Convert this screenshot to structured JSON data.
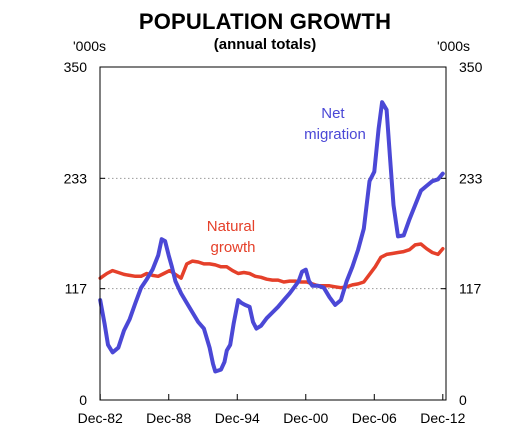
{
  "header": {
    "title": "POPULATION GROWTH",
    "subtitle": "(annual totals)",
    "unit_left": "'000s",
    "unit_right": "'000s"
  },
  "chart_data": {
    "type": "line",
    "title": "POPULATION GROWTH",
    "subtitle": "(annual totals)",
    "ylabel_left": "'000s",
    "ylabel_right": "'000s",
    "ylim": [
      0,
      350
    ],
    "yticks": [
      0,
      117,
      233,
      350
    ],
    "ytick_labels": [
      "0",
      "117",
      "233",
      "350"
    ],
    "xlim": [
      1982.9,
      2013.2
    ],
    "xticks": [
      1982.92,
      1988.92,
      1994.92,
      2000.92,
      2006.92,
      2012.92
    ],
    "xtick_labels": [
      "Dec-82",
      "Dec-88",
      "Dec-94",
      "Dec-00",
      "Dec-06",
      "Dec-12"
    ],
    "grid": "horizontal dotted at 117 and 233",
    "series": [
      {
        "name": "Natural growth",
        "label_lines": [
          "Natural",
          "growth"
        ],
        "color": "#e5402a",
        "x": [
          1982.92,
          1983.5,
          1984.0,
          1984.5,
          1985.0,
          1985.5,
          1986.0,
          1986.5,
          1987.0,
          1987.5,
          1988.0,
          1988.5,
          1989.0,
          1989.5,
          1990.0,
          1990.5,
          1991.0,
          1991.5,
          1992.0,
          1992.5,
          1993.0,
          1993.5,
          1994.0,
          1994.5,
          1995.0,
          1995.5,
          1996.0,
          1996.5,
          1997.0,
          1997.5,
          1998.0,
          1998.5,
          1999.0,
          1999.5,
          2000.0,
          2000.5,
          2001.0,
          2001.5,
          2002.0,
          2002.5,
          2003.0,
          2003.5,
          2004.0,
          2004.5,
          2005.0,
          2005.5,
          2006.0,
          2006.5,
          2007.0,
          2007.5,
          2008.0,
          2008.5,
          2009.0,
          2009.5,
          2010.0,
          2010.5,
          2011.0,
          2011.5,
          2012.0,
          2012.5,
          2012.92
        ],
        "values": [
          128,
          133,
          136,
          134,
          132,
          131,
          130,
          130,
          133,
          131,
          130,
          133,
          136,
          132,
          128,
          143,
          146,
          145,
          143,
          143,
          142,
          140,
          140,
          136,
          133,
          134,
          133,
          130,
          129,
          127,
          126,
          126,
          124,
          125,
          125,
          124,
          124,
          122,
          120,
          120,
          120,
          119,
          118,
          119,
          121,
          122,
          124,
          132,
          140,
          150,
          153,
          154,
          155,
          156,
          158,
          163,
          164,
          159,
          155,
          153,
          159
        ]
      },
      {
        "name": "Net migration",
        "label_lines": [
          "Net",
          "migration"
        ],
        "color": "#4b48d6",
        "x": [
          1982.92,
          1983.3,
          1983.6,
          1984.0,
          1984.5,
          1985.0,
          1985.5,
          1986.0,
          1986.5,
          1987.0,
          1987.5,
          1988.0,
          1988.3,
          1988.6,
          1988.92,
          1989.2,
          1989.5,
          1990.0,
          1990.5,
          1991.0,
          1991.5,
          1992.0,
          1992.5,
          1992.8,
          1993.0,
          1993.5,
          1993.8,
          1994.0,
          1994.3,
          1994.6,
          1995.0,
          1995.3,
          1995.6,
          1996.0,
          1996.3,
          1996.6,
          1997.0,
          1997.5,
          1998.0,
          1998.5,
          1999.0,
          1999.5,
          2000.0,
          2000.3,
          2000.6,
          2000.92,
          2001.2,
          2001.5,
          2002.0,
          2002.5,
          2003.0,
          2003.5,
          2004.0,
          2004.5,
          2005.0,
          2005.5,
          2006.0,
          2006.5,
          2006.92,
          2007.3,
          2007.6,
          2008.0,
          2008.3,
          2008.6,
          2009.0,
          2009.5,
          2010.0,
          2010.5,
          2011.0,
          2011.5,
          2012.0,
          2012.5,
          2012.92
        ],
        "values": [
          105,
          80,
          58,
          50,
          55,
          73,
          85,
          102,
          118,
          127,
          137,
          152,
          169,
          167,
          152,
          140,
          125,
          112,
          102,
          92,
          82,
          75,
          55,
          38,
          30,
          32,
          40,
          52,
          58,
          80,
          105,
          102,
          100,
          98,
          82,
          75,
          78,
          86,
          92,
          98,
          105,
          112,
          120,
          125,
          135,
          137,
          125,
          120,
          120,
          118,
          108,
          100,
          105,
          125,
          140,
          158,
          180,
          230,
          240,
          285,
          313,
          305,
          255,
          205,
          172,
          173,
          190,
          205,
          220,
          225,
          230,
          232,
          238
        ]
      }
    ],
    "annotations": [
      {
        "text_lines": [
          "Net",
          "migration"
        ],
        "series": "Net migration"
      },
      {
        "text_lines": [
          "Natural",
          "growth"
        ],
        "series": "Natural growth"
      }
    ]
  }
}
